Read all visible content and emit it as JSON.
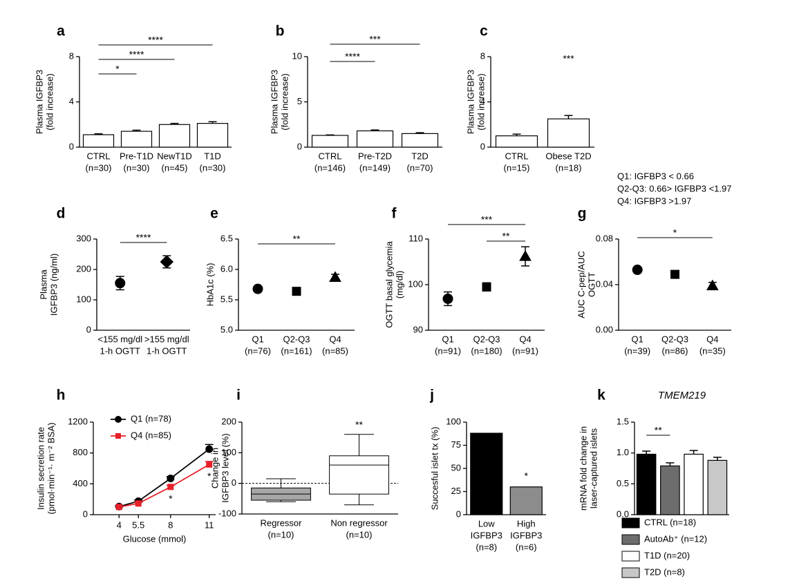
{
  "notes": [
    "Q1: IGFBP3 < 0.66",
    "Q2-Q3: 0.66> IGFBP3 <1.97",
    "Q4: IGFBP3 >1.97"
  ],
  "chart_data": [
    {
      "type": "bar",
      "label": "a",
      "ylabel": [
        "Plasma IGFBP3",
        "(fold increase)"
      ],
      "categories": [
        [
          "CTRL",
          "(n=30)"
        ],
        [
          "Pre-T1D",
          "(n=30)"
        ],
        [
          "NewT1D",
          "(n=45)"
        ],
        [
          "T1D",
          "(n=30)"
        ]
      ],
      "values": [
        1.1,
        1.4,
        2.0,
        2.1
      ],
      "errors": [
        0.08,
        0.1,
        0.1,
        0.15
      ],
      "color": "#ffffff",
      "ylim": [
        0,
        8
      ],
      "yticks": [
        0,
        4,
        8
      ],
      "annotations": [
        {
          "text": "*",
          "from": "CTRL",
          "to": "Pre-T1D"
        },
        {
          "text": "****",
          "from": "CTRL",
          "to": "NewT1D"
        },
        {
          "text": "****",
          "from": "CTRL",
          "to": "T1D"
        }
      ]
    },
    {
      "type": "bar",
      "label": "b",
      "ylabel": [
        "Plasma IGFBP3",
        "(fold increase)"
      ],
      "categories": [
        [
          "CTRL",
          "(n=146)"
        ],
        [
          "Pre-T2D",
          "(n=149)"
        ],
        [
          "T2D",
          "(n=70)"
        ]
      ],
      "values": [
        1.3,
        1.8,
        1.5
      ],
      "errors": [
        0.05,
        0.1,
        0.1
      ],
      "color": "#ffffff",
      "ylim": [
        0,
        10
      ],
      "yticks": [
        0,
        5,
        10
      ],
      "annotations": [
        {
          "text": "****",
          "from": "CTRL",
          "to": "Pre-T2D"
        },
        {
          "text": "***",
          "from": "CTRL",
          "to": "T2D"
        }
      ]
    },
    {
      "type": "bar",
      "label": "c",
      "ylabel": [
        "Plasma IGFBP3",
        "(fold increase)"
      ],
      "categories": [
        [
          "CTRL",
          "(n=15)"
        ],
        [
          "Obese T2D",
          "(n=18)"
        ]
      ],
      "values": [
        1.0,
        2.5
      ],
      "errors": [
        0.15,
        0.3
      ],
      "color": "#ffffff",
      "ylim": [
        0,
        8
      ],
      "yticks": [
        0,
        4,
        8
      ],
      "stars": [
        {
          "text": "***",
          "at": "Obese T2D"
        }
      ]
    },
    {
      "type": "dot",
      "label": "d",
      "ylabel": [
        "Plasma",
        "IGFBP3 (ng/ml)"
      ],
      "categories": [
        [
          "<155 mg/dl",
          "1-h OGTT"
        ],
        [
          ">155 mg/dl",
          "1-h OGTT"
        ]
      ],
      "values": [
        155,
        225
      ],
      "errors": [
        22,
        20
      ],
      "markers": [
        "circle",
        "diamond"
      ],
      "ylim": [
        0,
        300
      ],
      "yticks": [
        0,
        100,
        200,
        300
      ],
      "annotations": [
        {
          "text": "****",
          "from": "<155 mg/dl",
          "to": ">155 mg/dl"
        }
      ]
    },
    {
      "type": "dot",
      "label": "e",
      "ylabel": [
        "HbA1c (%)"
      ],
      "categories": [
        [
          "Q1",
          "(n=76)"
        ],
        [
          "Q2-Q3",
          "(n=161)"
        ],
        [
          "Q4",
          "(n=85)"
        ]
      ],
      "values": [
        5.68,
        5.64,
        5.87
      ],
      "errors": [
        0.04,
        0.04,
        0.05
      ],
      "markers": [
        "circle",
        "square",
        "triangle"
      ],
      "ylim": [
        5.0,
        6.5
      ],
      "yticks": [
        {
          "value": 5.0,
          "label": "5.0"
        },
        5.5,
        {
          "value": 6.0,
          "label": "6.0"
        },
        6.5
      ],
      "annotations": [
        {
          "text": "**",
          "from": "Q1",
          "to": "Q4"
        }
      ]
    },
    {
      "type": "dot",
      "label": "f",
      "ylabel": [
        "OGTT basal glycemia",
        "(mg/dl)"
      ],
      "categories": [
        [
          "Q1",
          "(n=91)"
        ],
        [
          "Q2-Q3",
          "(n=180)"
        ],
        [
          "Q4",
          "(n=91)"
        ]
      ],
      "values": [
        96.9,
        99.5,
        106.2
      ],
      "errors": [
        1.5,
        0.9,
        2.1
      ],
      "markers": [
        "circle",
        "square",
        "triangle"
      ],
      "ylim": [
        90,
        110
      ],
      "yticks": [
        90,
        100,
        110
      ],
      "annotations": [
        {
          "text": "**",
          "from": "Q2-Q3",
          "to": "Q4"
        },
        {
          "text": "***",
          "from": "Q1",
          "to": "Q4"
        }
      ]
    },
    {
      "type": "dot",
      "label": "g",
      "ylabel": [
        "AUC C-pep/AUC",
        "OGTT"
      ],
      "categories": [
        [
          "Q1",
          "(n=39)"
        ],
        [
          "Q2-Q3",
          "(n=86)"
        ],
        [
          "Q4",
          "(n=35)"
        ]
      ],
      "values": [
        0.053,
        0.049,
        0.039
      ],
      "errors": [
        0.002,
        0.002,
        0.003
      ],
      "markers": [
        "circle",
        "square",
        "triangle"
      ],
      "ylim": [
        0,
        0.08
      ],
      "yticks": [
        {
          "value": 0,
          "label": "0.00"
        },
        {
          "value": 0.04,
          "label": "0.04"
        },
        {
          "value": 0.08,
          "label": "0.08"
        }
      ],
      "annotations": [
        {
          "text": "*",
          "from": "Q1",
          "to": "Q4"
        }
      ]
    },
    {
      "type": "line",
      "label": "h",
      "ylabel": [
        "Insulin secretion rate",
        "(pmol·min⁻¹· m⁻² BSA)"
      ],
      "xlabel": "Glucose (mmol)",
      "x": [
        4,
        5.5,
        8,
        11
      ],
      "xlim": [
        2,
        11.5
      ],
      "xticks": [
        4,
        5.5,
        8,
        11
      ],
      "series": [
        {
          "name": "Q1 (n=78)",
          "color": "#000000",
          "marker": "circle",
          "values": [
            105,
            175,
            470,
            850
          ],
          "errors": [
            10,
            15,
            25,
            60
          ]
        },
        {
          "name": "Q4 (n=85)",
          "color": "#e8202a",
          "marker": "square",
          "values": [
            100,
            145,
            360,
            650
          ],
          "errors": [
            10,
            15,
            20,
            40
          ]
        }
      ],
      "ylim": [
        0,
        1200
      ],
      "yticks": [
        0,
        400,
        800,
        1200
      ],
      "stars": [
        {
          "text": "*",
          "at": 8
        },
        {
          "text": "*",
          "at": 11
        }
      ]
    },
    {
      "type": "box",
      "label": "i",
      "ylabel": [
        "Change in",
        "IGFBP3 level  (%)"
      ],
      "categories": [
        [
          "Regressor",
          "(n=10)"
        ],
        [
          "Non regressor",
          "(n=10)"
        ]
      ],
      "boxes": [
        {
          "whislo": -60,
          "q1": -55,
          "med": -35,
          "q3": -15,
          "whishi": 15
        },
        {
          "whislo": -70,
          "q1": -35,
          "med": 60,
          "q3": 90,
          "whishi": 160
        }
      ],
      "colors": [
        "#a6a6a6",
        "#ffffff"
      ],
      "reference": 0,
      "ylim": [
        -100,
        200
      ],
      "yticks": [
        -100,
        0,
        100,
        200
      ],
      "stars": [
        {
          "text": "**",
          "at": "Non regressor"
        }
      ]
    },
    {
      "type": "bar",
      "label": "j",
      "ylabel": [
        "Succesful islet tx (%)"
      ],
      "categories": [
        [
          "Low",
          "IGFBP3",
          "(n=8)"
        ],
        [
          "High",
          "IGFBP3",
          "(n=6)"
        ]
      ],
      "values": [
        88,
        30
      ],
      "colors": [
        "#000000",
        "#8c8c8c"
      ],
      "ylim": [
        0,
        100
      ],
      "yticks": [
        0,
        25,
        50,
        75,
        100
      ],
      "stars": [
        {
          "text": "*",
          "at": "High"
        }
      ]
    },
    {
      "type": "bar",
      "label": "k",
      "title": "TMEM219",
      "ylabel": [
        "mRNA fold change in",
        "laser-captured islets"
      ],
      "categories": [
        [
          "CTRL (n=18)"
        ],
        [
          "AutoAb⁺ (n=12)"
        ],
        [
          "T1D (n=20)"
        ],
        [
          "T2D (n=8)"
        ]
      ],
      "category_legend": true,
      "values": [
        0.98,
        0.79,
        0.98,
        0.88
      ],
      "errors": [
        0.05,
        0.05,
        0.06,
        0.05
      ],
      "colors": [
        "#000000",
        "#6d6d6d",
        "#ffffff",
        "#c8c8c8"
      ],
      "ylim": [
        0,
        1.5
      ],
      "yticks": [
        {
          "value": 0,
          "label": "0.0"
        },
        0.5,
        {
          "value": 1,
          "label": "1.0"
        },
        1.5
      ],
      "annotations": [
        {
          "text": "**",
          "from": "CTRL (n=18)",
          "to": "AutoAb⁺ (n=12)"
        }
      ]
    }
  ]
}
